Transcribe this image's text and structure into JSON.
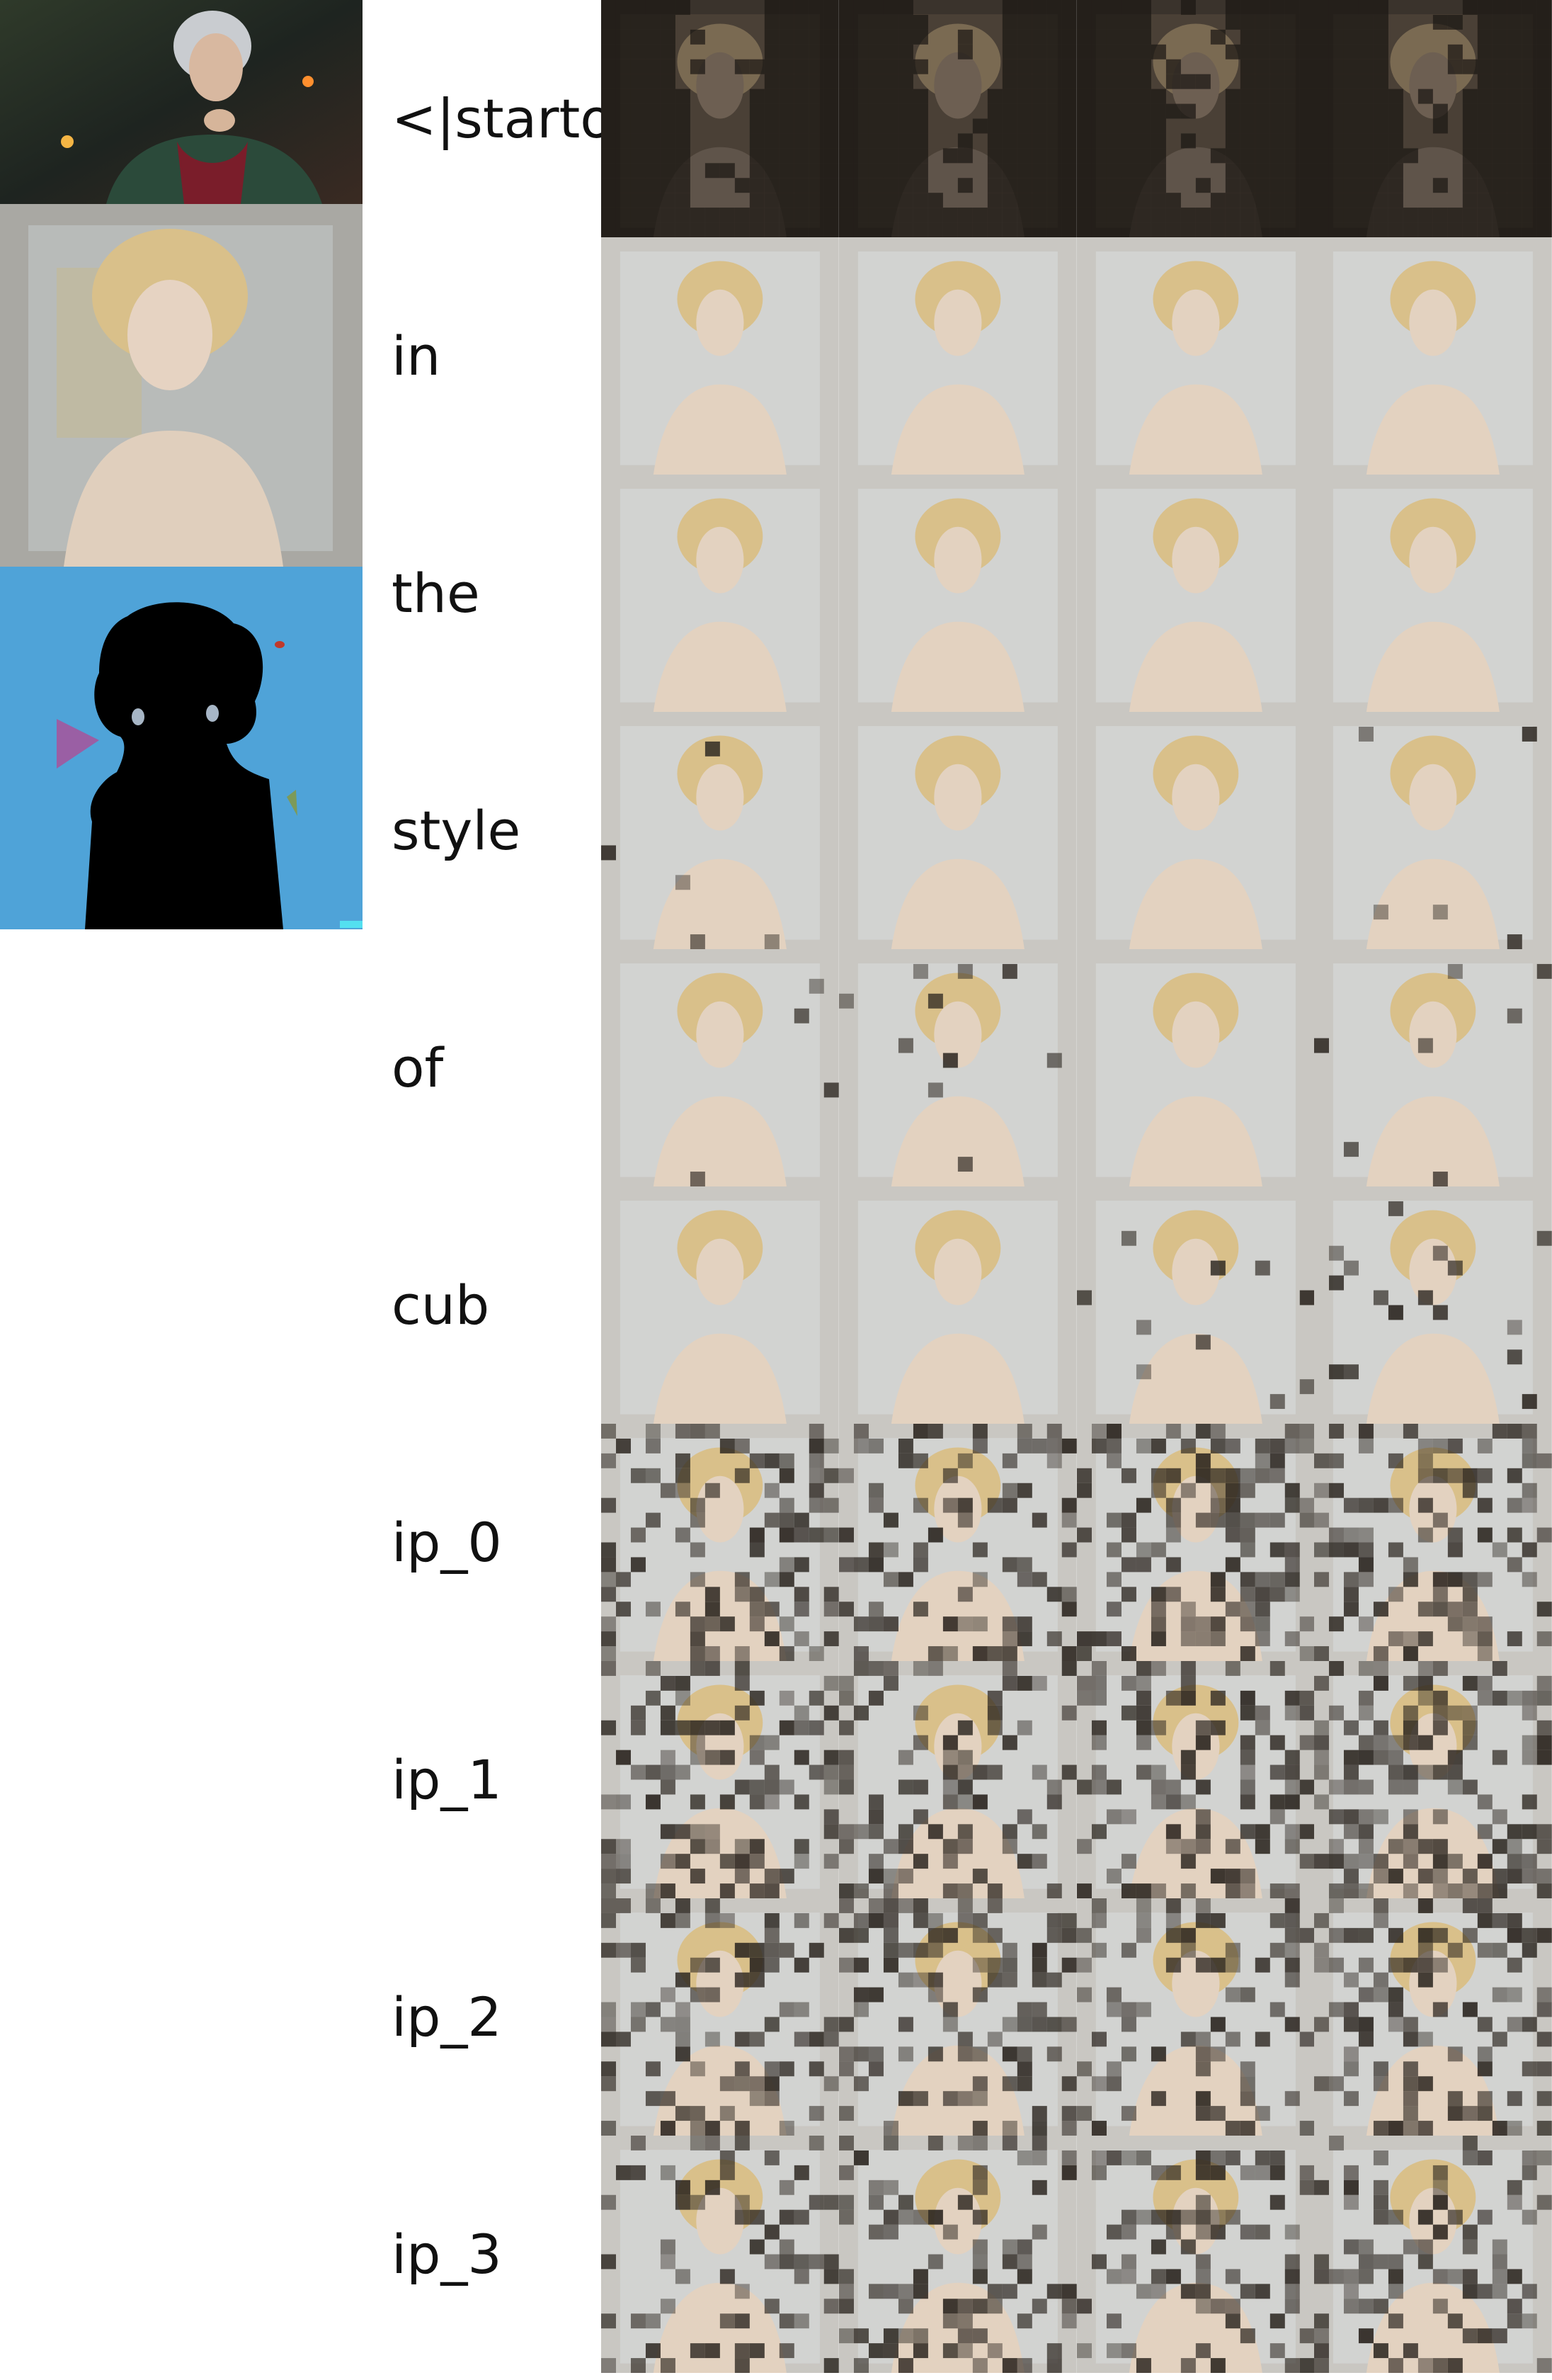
{
  "tokens": [
    "<|startoftext|>",
    "in",
    "the",
    "style",
    "of",
    "cub",
    "ip_0",
    "ip_1",
    "ip_2",
    "ip_3"
  ],
  "columns": 4,
  "reference_images": [
    {
      "name": "character-photo-thumbnail"
    },
    {
      "name": "generated-portrait-thumbnail"
    },
    {
      "name": "segmentation-mask-thumbnail"
    }
  ],
  "colors": {
    "seg_background": "#4fa3d8",
    "seg_figure": "#000000",
    "seg_purple": "#9a5fa4",
    "seg_green": "#7c9a5a",
    "seg_red": "#c0392b",
    "portrait_bg": "#c9c7c2",
    "hair": "#d9c08a",
    "skin": "#e3d2c0",
    "attn_dark": "#2a241e"
  },
  "attention_density": [
    [
      0.9,
      0.7,
      0.8,
      0.8
    ],
    [
      0.0,
      0.0,
      0.0,
      0.0
    ],
    [
      0.0,
      0.0,
      0.0,
      0.0
    ],
    [
      0.02,
      0.0,
      0.0,
      0.02
    ],
    [
      0.02,
      0.03,
      0.02,
      0.02
    ],
    [
      0.0,
      0.0,
      0.03,
      0.06
    ],
    [
      0.35,
      0.3,
      0.35,
      0.4
    ],
    [
      0.35,
      0.3,
      0.35,
      0.45
    ],
    [
      0.35,
      0.3,
      0.3,
      0.35
    ],
    [
      0.3,
      0.3,
      0.3,
      0.3
    ]
  ]
}
